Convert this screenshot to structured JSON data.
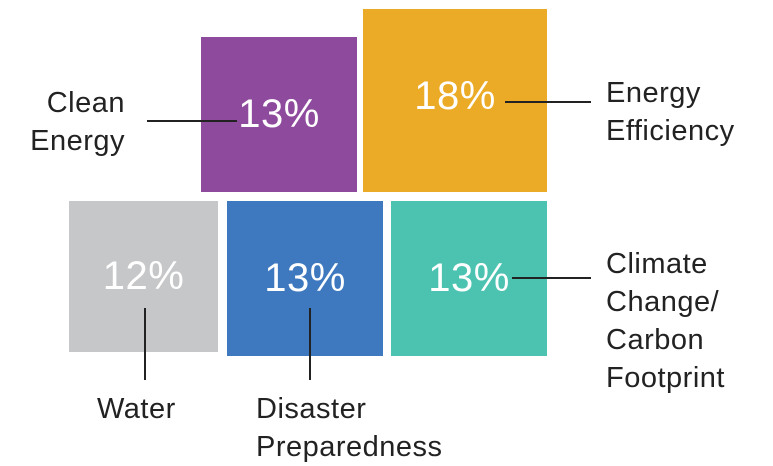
{
  "chart_data": {
    "type": "treemap",
    "items": [
      {
        "label": [
          "Clean",
          "Energy"
        ],
        "value": "13%",
        "color": "#8e4a9c"
      },
      {
        "label": [
          "Energy",
          "Efficiency"
        ],
        "value": "18%",
        "color": "#ebab26"
      },
      {
        "label": [
          "Water"
        ],
        "value": "12%",
        "color": "#c6c7c9"
      },
      {
        "label": [
          "Disaster",
          "Preparedness"
        ],
        "value": "13%",
        "color": "#3e78bf"
      },
      {
        "label": [
          "Climate",
          "Change/",
          "Carbon",
          "Footprint"
        ],
        "value": "13%",
        "color": "#4cc3b1"
      }
    ]
  }
}
